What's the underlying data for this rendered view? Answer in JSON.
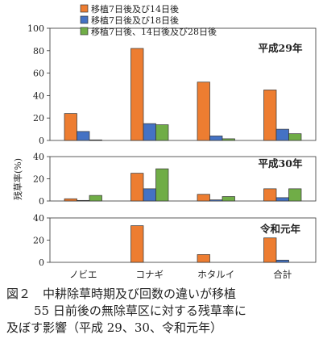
{
  "chart_data": [
    {
      "type": "bar",
      "title": "平成29年",
      "ylabel": "残草率(%)",
      "categories": [
        "ノビエ",
        "コナギ",
        "ホタルイ",
        "合計"
      ],
      "ylim": [
        0,
        100
      ],
      "yticks": [
        0,
        20,
        40,
        60,
        80,
        100
      ],
      "series": [
        {
          "name": "移植7日後及び14日後",
          "color": "#ED7D31",
          "values": [
            24,
            82,
            52,
            45
          ]
        },
        {
          "name": "移植7日後及び18日後",
          "color": "#4472C4",
          "values": [
            8,
            15,
            4,
            10
          ]
        },
        {
          "name": "移植7日後、14日後及び28日後",
          "color": "#70AD47",
          "values": [
            0.5,
            14,
            1.5,
            6
          ]
        }
      ],
      "legend": "top"
    },
    {
      "type": "bar",
      "title": "平成30年",
      "categories": [
        "ノビエ",
        "コナギ",
        "ホタルイ",
        "合計"
      ],
      "ylim": [
        0,
        40
      ],
      "yticks": [
        0,
        20,
        40
      ],
      "series": [
        {
          "name": "移植7日後及び14日後",
          "color": "#ED7D31",
          "values": [
            2,
            25,
            6,
            11
          ]
        },
        {
          "name": "移植7日後及び18日後",
          "color": "#4472C4",
          "values": [
            0.5,
            11,
            1,
            3
          ]
        },
        {
          "name": "移植7日後、14日後及び28日後",
          "color": "#70AD47",
          "values": [
            5,
            29,
            4,
            11
          ]
        }
      ]
    },
    {
      "type": "bar",
      "title": "令和元年",
      "categories": [
        "ノビエ",
        "コナギ",
        "ホタルイ",
        "合計"
      ],
      "ylim": [
        0,
        40
      ],
      "yticks": [
        0,
        20,
        40
      ],
      "series": [
        {
          "name": "移植7日後及び14日後",
          "color": "#ED7D31",
          "values": [
            0,
            33,
            7,
            22
          ]
        },
        {
          "name": "移植7日後及び18日後",
          "color": "#4472C4",
          "values": [
            0,
            0,
            0,
            2
          ]
        }
      ]
    }
  ],
  "caption": {
    "line1": "図２　中耕除草時期及び回数の違いが移植",
    "line2": "55 日前後の無除草区に対する残草率に",
    "line3": "及ぼす影響（平成 29、30、令和元年）"
  }
}
